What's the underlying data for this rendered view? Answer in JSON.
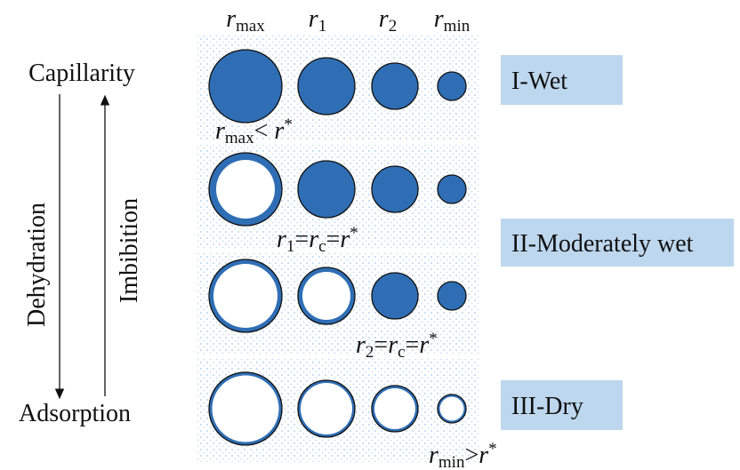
{
  "headers": [
    [
      {
        "text": "r",
        "style": "italic"
      },
      {
        "text": "max",
        "style": "sub"
      }
    ],
    [
      {
        "text": "r",
        "style": "italic"
      },
      {
        "text": "1",
        "style": "sub"
      }
    ],
    [
      {
        "text": "r",
        "style": "italic"
      },
      {
        "text": "2",
        "style": "sub"
      }
    ],
    [
      {
        "text": "r",
        "style": "italic"
      },
      {
        "text": "min",
        "style": "sub"
      }
    ]
  ],
  "left": {
    "top": "Capillarity",
    "bottom": "Adsorption",
    "down_arrow": "Dehydration",
    "up_arrow": "Imbibition"
  },
  "annotations": [
    [
      {
        "text": "r",
        "style": "italic"
      },
      {
        "text": "max",
        "style": "sub"
      },
      {
        "text": "< ",
        "style": "normal"
      },
      {
        "text": "r",
        "style": "italic"
      },
      {
        "text": "*",
        "style": "sup"
      }
    ],
    [
      {
        "text": "r",
        "style": "italic"
      },
      {
        "text": "1",
        "style": "sub"
      },
      {
        "text": "=",
        "style": "normal"
      },
      {
        "text": "r",
        "style": "italic"
      },
      {
        "text": "c",
        "style": "sub"
      },
      {
        "text": "=",
        "style": "normal"
      },
      {
        "text": "r",
        "style": "italic"
      },
      {
        "text": "*",
        "style": "sup"
      }
    ],
    [
      {
        "text": "r",
        "style": "italic"
      },
      {
        "text": "2",
        "style": "sub"
      },
      {
        "text": "=",
        "style": "normal"
      },
      {
        "text": "r",
        "style": "italic"
      },
      {
        "text": "c",
        "style": "sub"
      },
      {
        "text": "=",
        "style": "normal"
      },
      {
        "text": "r",
        "style": "italic"
      },
      {
        "text": "*",
        "style": "sup"
      }
    ],
    [
      {
        "text": "r",
        "style": "italic"
      },
      {
        "text": "min",
        "style": "sub"
      },
      {
        "text": ">",
        "style": "normal"
      },
      {
        "text": "r",
        "style": "italic"
      },
      {
        "text": "*",
        "style": "sup"
      }
    ]
  ],
  "states": [
    "I-Wet",
    "II-Moderately wet",
    "III-Dry"
  ]
}
